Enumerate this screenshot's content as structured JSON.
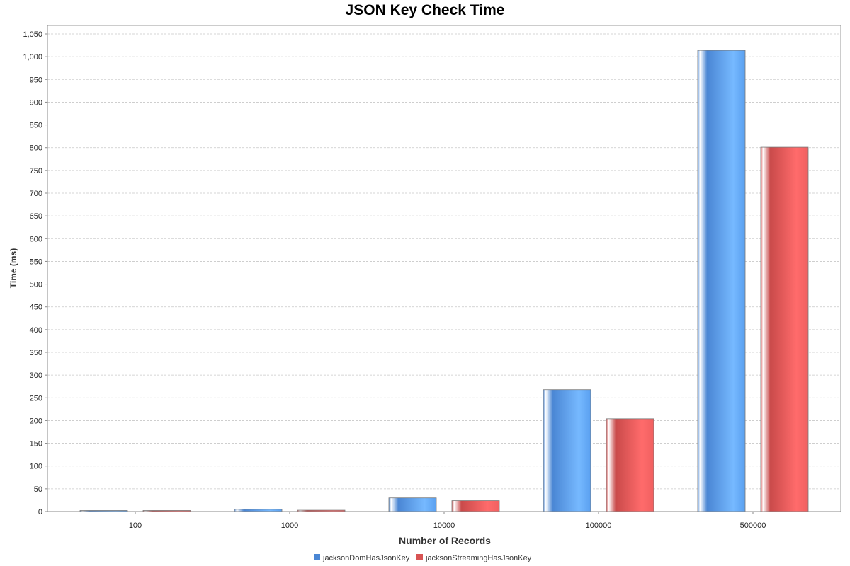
{
  "chart_data": {
    "type": "bar",
    "title": "JSON Key Check Time",
    "xlabel": "Number of Records",
    "ylabel": "Time (ms)",
    "categories": [
      "100",
      "1000",
      "10000",
      "100000",
      "500000"
    ],
    "series": [
      {
        "name": "jacksonDomHasJsonKey",
        "values": [
          2,
          5,
          30,
          268,
          1014
        ]
      },
      {
        "name": "jacksonStreamingHasJsonKey",
        "values": [
          1,
          3,
          24,
          204,
          801
        ]
      }
    ],
    "ylim": [
      0,
      1050
    ],
    "ytick_step": 50,
    "ytick_labels": [
      "0",
      "50",
      "100",
      "150",
      "200",
      "250",
      "300",
      "350",
      "400",
      "450",
      "500",
      "550",
      "600",
      "650",
      "700",
      "750",
      "800",
      "850",
      "900",
      "950",
      "1,000",
      "1,050"
    ],
    "grid": true,
    "legend_position": "bottom-center",
    "colors": {
      "series_0_light": "#74b6ff",
      "series_0_dark": "#4a89d8",
      "series_1_light": "#ff6a6a",
      "series_1_dark": "#cc4c4c",
      "grid": "#c8c8c8",
      "axis": "#888888"
    }
  }
}
